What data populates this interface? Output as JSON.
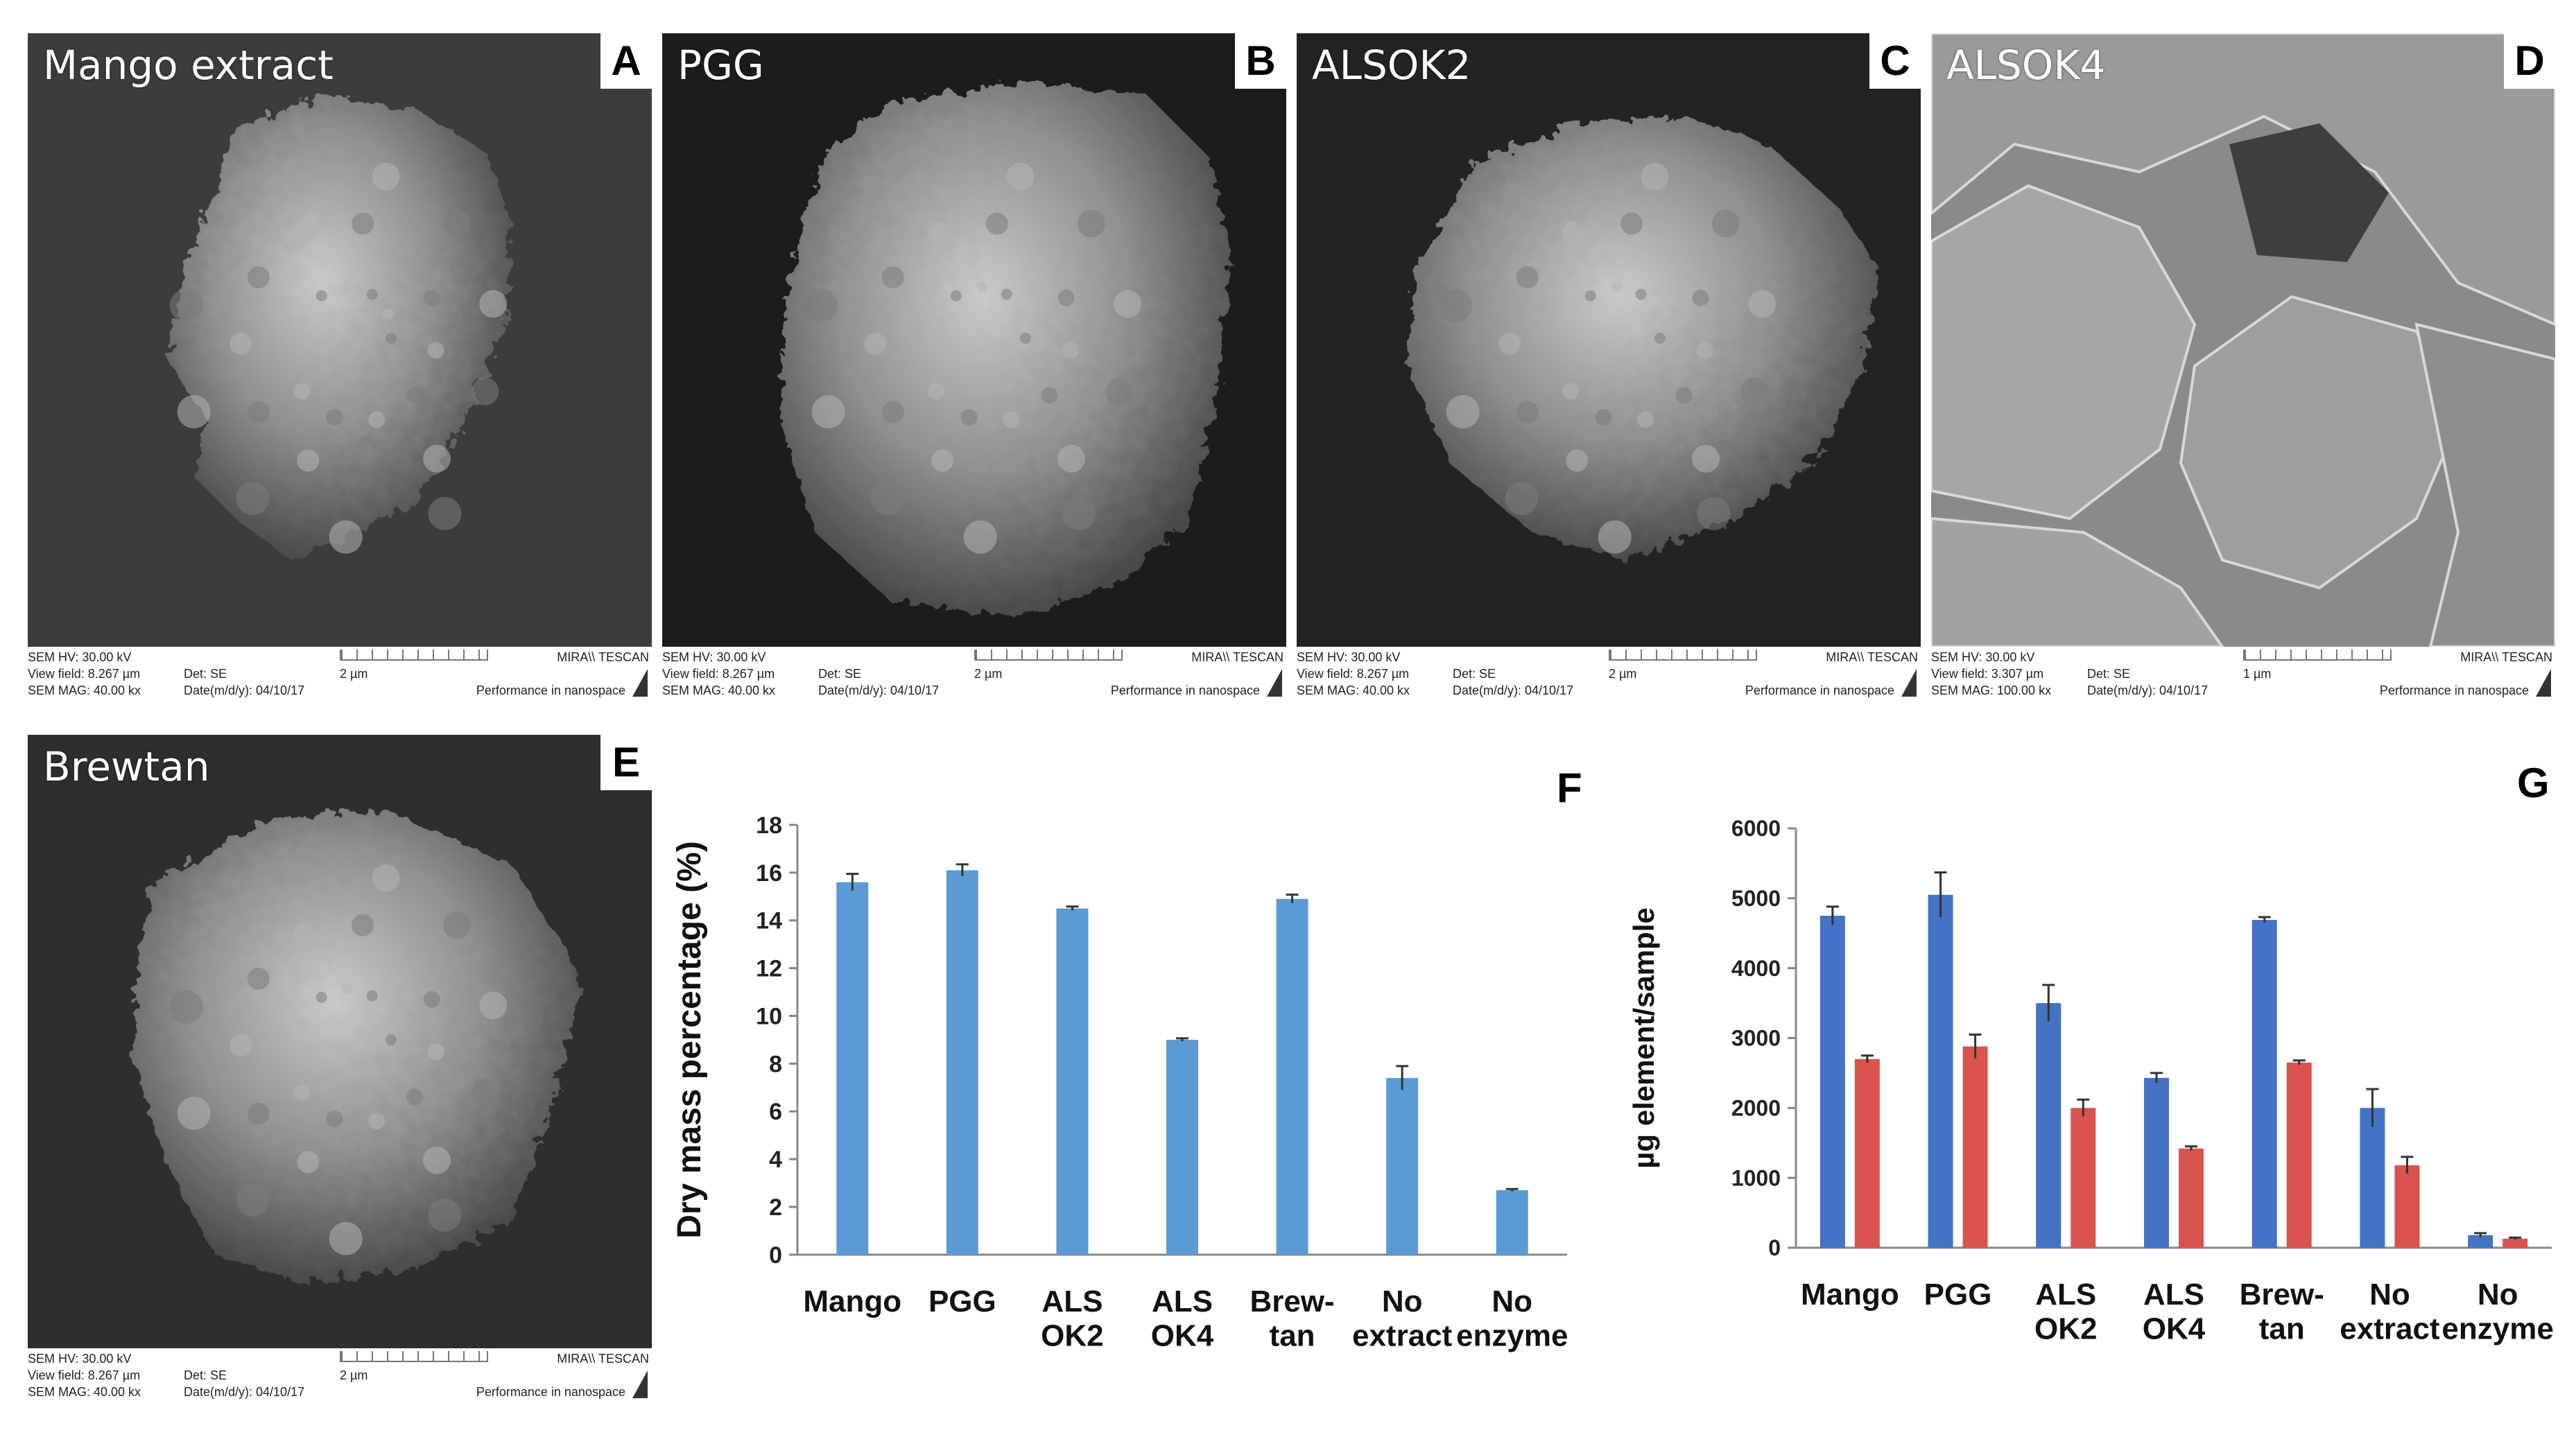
{
  "panels": [
    {
      "letter": "A",
      "title": "Mango extract",
      "hv": "SEM HV: 30.00 kV",
      "field": "View field: 8.267 µm",
      "mag": "SEM MAG: 40.00 kx",
      "det": "Det: SE",
      "date": "Date(m/d/y): 04/10/17",
      "scale": "2 µm",
      "brand": "MIRA\\\\ TESCAN",
      "tagline": "Performance in nanospace"
    },
    {
      "letter": "B",
      "title": "PGG",
      "hv": "SEM HV: 30.00 kV",
      "field": "View field: 8.267 µm",
      "mag": "SEM MAG: 40.00 kx",
      "det": "Det: SE",
      "date": "Date(m/d/y): 04/10/17",
      "scale": "2 µm",
      "brand": "MIRA\\\\ TESCAN",
      "tagline": "Performance in nanospace"
    },
    {
      "letter": "C",
      "title": "ALSOK2",
      "hv": "SEM HV: 30.00 kV",
      "field": "View field: 8.267 µm",
      "mag": "SEM MAG: 40.00 kx",
      "det": "Det: SE",
      "date": "Date(m/d/y): 04/10/17",
      "scale": "2 µm",
      "brand": "MIRA\\\\ TESCAN",
      "tagline": "Performance in nanospace"
    },
    {
      "letter": "D",
      "title": "ALSOK4",
      "hv": "SEM HV: 30.00 kV",
      "field": "View field: 3.307 µm",
      "mag": "SEM MAG: 100.00 kx",
      "det": "Det: SE",
      "date": "Date(m/d/y): 04/10/17",
      "scale": "1 µm",
      "brand": "MIRA\\\\ TESCAN",
      "tagline": "Performance in nanospace"
    },
    {
      "letter": "E",
      "title": "Brewtan",
      "hv": "SEM HV: 30.00 kV",
      "field": "View field: 8.267 µm",
      "mag": "SEM MAG: 40.00 kx",
      "det": "Det: SE",
      "date": "Date(m/d/y): 04/10/17",
      "scale": "2 µm",
      "brand": "MIRA\\\\ TESCAN",
      "tagline": "Performance in nanospace"
    }
  ],
  "chart_data": [
    {
      "panel": "F",
      "type": "bar",
      "categories": [
        [
          "Mango"
        ],
        [
          "PGG"
        ],
        [
          "ALS",
          "OK2"
        ],
        [
          "ALS",
          "OK4"
        ],
        [
          "Brew-",
          "tan"
        ],
        [
          "No",
          "extract"
        ],
        [
          "No",
          "enzyme"
        ]
      ],
      "series": [
        {
          "values": [
            15.6,
            16.1,
            14.5,
            9.0,
            14.9,
            7.4,
            2.7
          ],
          "errors": [
            0.35,
            0.25,
            0.08,
            0.06,
            0.18,
            0.5,
            0.05
          ],
          "color": "#5b9bd5"
        }
      ],
      "ylabel": "Dry mass percentage (%)",
      "ylim": [
        0,
        18
      ],
      "yticks": [
        0,
        2,
        4,
        6,
        8,
        10,
        12,
        14,
        16,
        18
      ],
      "grid": false
    },
    {
      "panel": "G",
      "type": "bar",
      "categories": [
        [
          "Mango"
        ],
        [
          "PGG"
        ],
        [
          "ALS",
          "OK2"
        ],
        [
          "ALS",
          "OK4"
        ],
        [
          "Brew-",
          "tan"
        ],
        [
          "No",
          "extract"
        ],
        [
          "No",
          "enzyme"
        ]
      ],
      "series": [
        {
          "values": [
            4750,
            5050,
            3500,
            2430,
            4690,
            2000,
            180
          ],
          "errors": [
            130,
            320,
            260,
            70,
            40,
            270,
            30
          ],
          "color": "#4472c4"
        },
        {
          "values": [
            2700,
            2880,
            2000,
            1420,
            2650,
            1180,
            130
          ],
          "errors": [
            50,
            170,
            120,
            30,
            30,
            120,
            15
          ],
          "color": "#d9534f"
        }
      ],
      "ylabel": "µg element/sample",
      "ylim": [
        0,
        6000
      ],
      "yticks": [
        0,
        1000,
        2000,
        3000,
        4000,
        5000,
        6000
      ],
      "grid": false
    }
  ]
}
